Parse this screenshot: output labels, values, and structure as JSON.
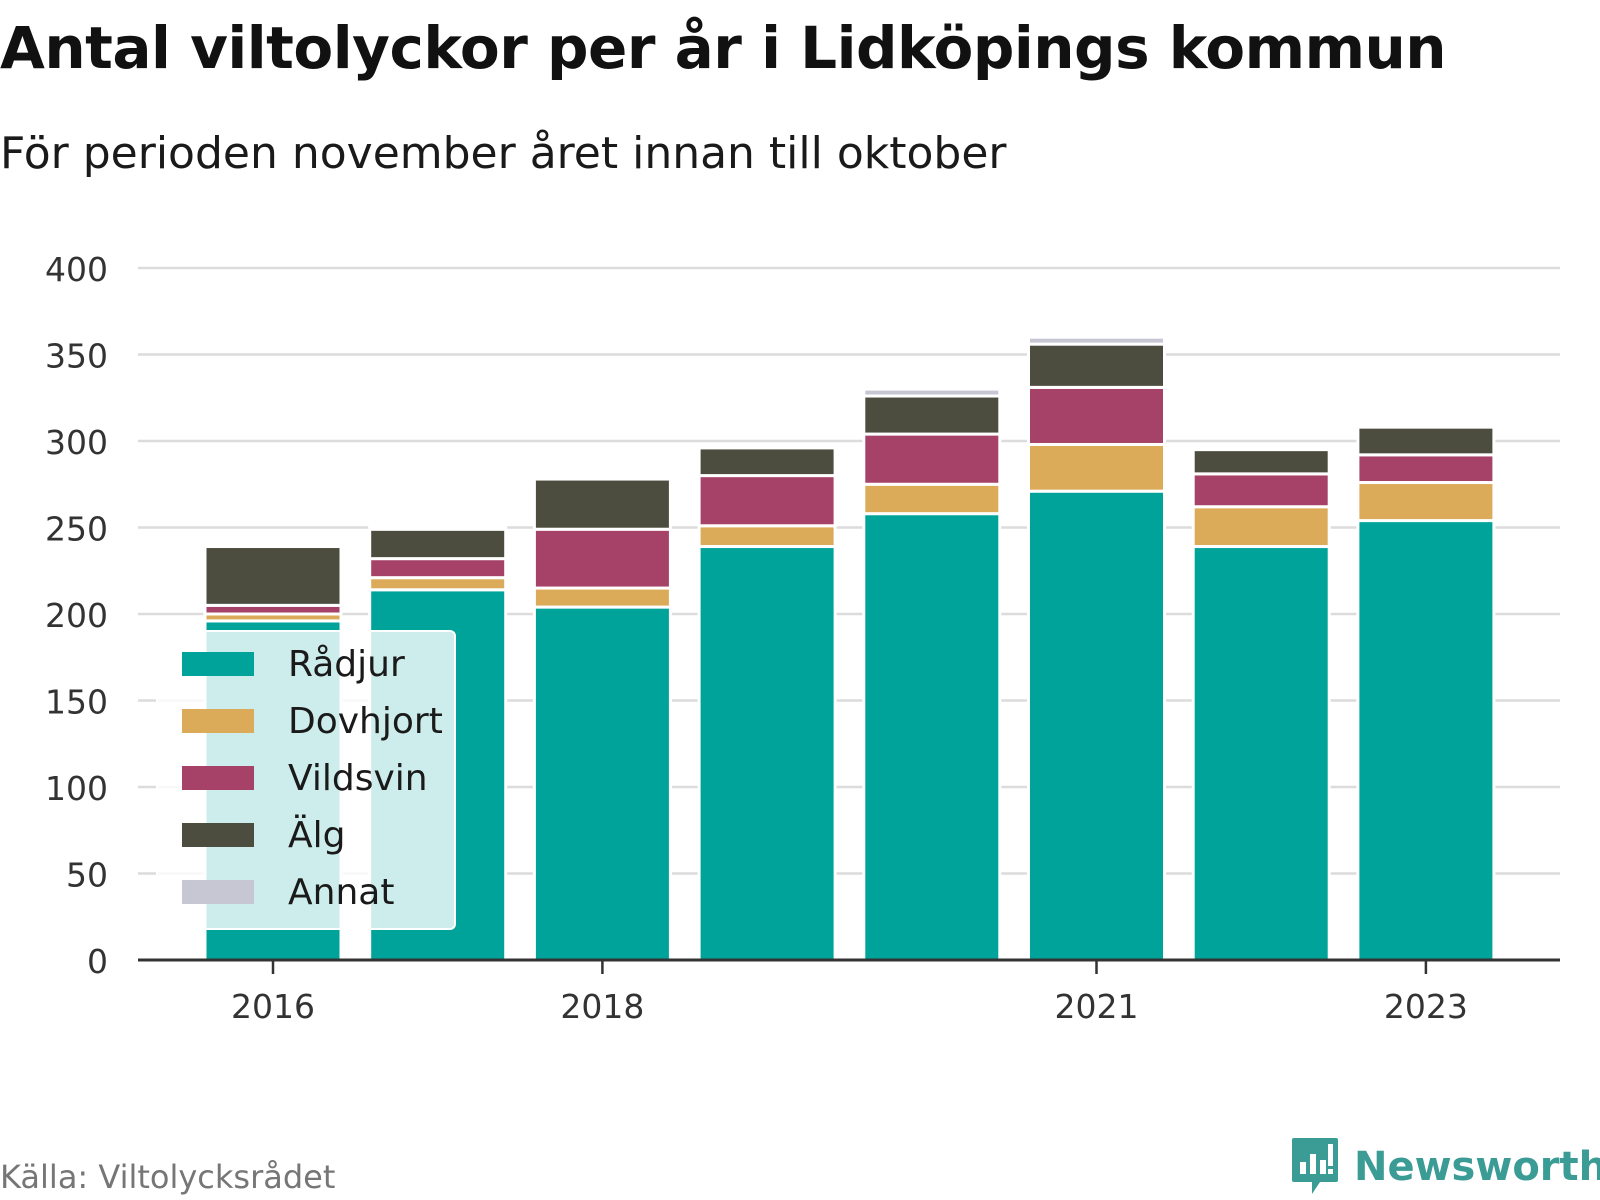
{
  "chart_data": {
    "type": "bar",
    "stacked": true,
    "title": "Antal viltolyckor per år i Lidköpings kommun",
    "subtitle": "För perioden november året innan till oktober",
    "categories": [
      "2016",
      "2017",
      "2018",
      "2019",
      "2020",
      "2021",
      "2022",
      "2023"
    ],
    "x_tick_labels": [
      "2016",
      "2018",
      "2021",
      "2023"
    ],
    "series": [
      {
        "name": "Rådjur",
        "color": "#00a39a",
        "values": [
          196,
          214,
          204,
          239,
          258,
          271,
          239,
          254
        ]
      },
      {
        "name": "Dovhjort",
        "color": "#dbab59",
        "values": [
          4,
          7,
          11,
          12,
          17,
          27,
          23,
          22
        ]
      },
      {
        "name": "Vildsvin",
        "color": "#a64167",
        "values": [
          5,
          11,
          34,
          29,
          29,
          33,
          19,
          16
        ]
      },
      {
        "name": "Älg",
        "color": "#4c4d3f",
        "values": [
          34,
          17,
          29,
          16,
          22,
          25,
          14,
          16
        ]
      },
      {
        "name": "Annat",
        "color": "#c7c7d4",
        "values": [
          0,
          1,
          0,
          0,
          4,
          4,
          0,
          0
        ]
      }
    ],
    "y_ticks": [
      0,
      50,
      100,
      150,
      200,
      250,
      300,
      350,
      400
    ],
    "ylim": [
      0,
      400
    ],
    "xlabel": "",
    "ylabel": "",
    "grid": true,
    "legend": "bottom-left"
  },
  "footer": {
    "source": "Källa: Viltolycksrådet",
    "brand": "Newsworthy",
    "brand_icon": "bar-chart-speech-bubble-icon",
    "brand_color": "#3a9c95"
  }
}
